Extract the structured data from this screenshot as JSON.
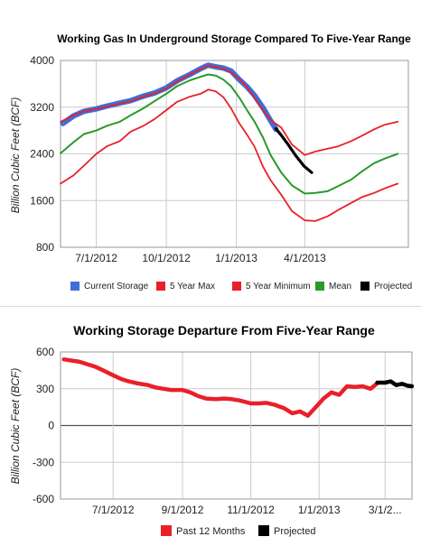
{
  "chart_data": [
    {
      "type": "line",
      "title": "Working Gas In Underground Storage Compared To Five-Year Range",
      "ylabel": "Billion Cubic Feet (BCF)",
      "xlabel": "",
      "ylim": [
        800,
        4000
      ],
      "yticks": [
        "4000",
        "3200",
        "2400",
        "1600",
        "800"
      ],
      "ytick_values": [
        4000,
        3200,
        2400,
        1600,
        800
      ],
      "xlim": [
        "2012-05-15",
        "2013-08-15"
      ],
      "xticks": [
        "7/1/2012",
        "10/1/2012",
        "1/1/2013",
        "4/1/2013"
      ],
      "xtick_dates": [
        "2012-07-01",
        "2012-10-01",
        "2013-01-01",
        "2013-04-01"
      ],
      "grid": true,
      "legend_position": "bottom",
      "series": [
        {
          "name": "Current Storage",
          "color": "#3d6fd8",
          "points": [
            [
              "2012-05-18",
              2920
            ],
            [
              "2012-06-01",
              3050
            ],
            [
              "2012-06-15",
              3130
            ],
            [
              "2012-07-01",
              3170
            ],
            [
              "2012-07-15",
              3220
            ],
            [
              "2012-08-01",
              3270
            ],
            [
              "2012-08-15",
              3310
            ],
            [
              "2012-09-01",
              3390
            ],
            [
              "2012-09-15",
              3440
            ],
            [
              "2012-10-01",
              3530
            ],
            [
              "2012-10-15",
              3650
            ],
            [
              "2012-11-01",
              3760
            ],
            [
              "2012-11-15",
              3860
            ],
            [
              "2012-11-25",
              3920
            ],
            [
              "2012-12-05",
              3890
            ],
            [
              "2012-12-15",
              3870
            ],
            [
              "2012-12-25",
              3820
            ],
            [
              "2013-01-05",
              3670
            ],
            [
              "2013-01-15",
              3550
            ],
            [
              "2013-01-25",
              3400
            ],
            [
              "2013-02-05",
              3190
            ],
            [
              "2013-02-15",
              2970
            ],
            [
              "2013-02-22",
              2820
            ]
          ]
        },
        {
          "name": "5 Year Max",
          "color": "#e8202a",
          "points": [
            [
              "2012-05-15",
              2950
            ],
            [
              "2012-06-01",
              3060
            ],
            [
              "2012-06-15",
              3130
            ],
            [
              "2012-07-01",
              3170
            ],
            [
              "2012-07-15",
              3210
            ],
            [
              "2012-08-01",
              3260
            ],
            [
              "2012-08-15",
              3300
            ],
            [
              "2012-09-01",
              3380
            ],
            [
              "2012-09-15",
              3430
            ],
            [
              "2012-10-01",
              3520
            ],
            [
              "2012-10-15",
              3640
            ],
            [
              "2012-11-01",
              3760
            ],
            [
              "2012-11-15",
              3850
            ],
            [
              "2012-11-25",
              3910
            ],
            [
              "2012-12-05",
              3890
            ],
            [
              "2012-12-15",
              3860
            ],
            [
              "2012-12-25",
              3800
            ],
            [
              "2013-01-05",
              3680
            ],
            [
              "2013-01-15",
              3540
            ],
            [
              "2013-01-25",
              3360
            ],
            [
              "2013-02-05",
              3150
            ],
            [
              "2013-02-15",
              2980
            ],
            [
              "2013-03-01",
              2850
            ],
            [
              "2013-03-15",
              2560
            ],
            [
              "2013-04-01",
              2380
            ],
            [
              "2013-04-15",
              2440
            ],
            [
              "2013-05-01",
              2490
            ],
            [
              "2013-05-15",
              2530
            ],
            [
              "2013-06-01",
              2620
            ],
            [
              "2013-06-15",
              2710
            ],
            [
              "2013-07-01",
              2820
            ],
            [
              "2013-07-15",
              2900
            ],
            [
              "2013-08-01",
              2950
            ]
          ]
        },
        {
          "name": "5 Year Minimum",
          "color": "#e8202a",
          "points": [
            [
              "2012-05-15",
              1890
            ],
            [
              "2012-06-01",
              2030
            ],
            [
              "2012-06-15",
              2200
            ],
            [
              "2012-07-01",
              2400
            ],
            [
              "2012-07-15",
              2530
            ],
            [
              "2012-08-01",
              2620
            ],
            [
              "2012-08-15",
              2780
            ],
            [
              "2012-09-01",
              2880
            ],
            [
              "2012-09-15",
              2990
            ],
            [
              "2012-10-01",
              3150
            ],
            [
              "2012-10-15",
              3290
            ],
            [
              "2012-11-01",
              3380
            ],
            [
              "2012-11-15",
              3430
            ],
            [
              "2012-11-25",
              3500
            ],
            [
              "2012-12-05",
              3470
            ],
            [
              "2012-12-15",
              3370
            ],
            [
              "2012-12-25",
              3180
            ],
            [
              "2013-01-05",
              2920
            ],
            [
              "2013-01-15",
              2730
            ],
            [
              "2013-01-25",
              2520
            ],
            [
              "2013-02-05",
              2180
            ],
            [
              "2013-02-15",
              1950
            ],
            [
              "2013-03-01",
              1700
            ],
            [
              "2013-03-15",
              1420
            ],
            [
              "2013-04-01",
              1260
            ],
            [
              "2013-04-15",
              1250
            ],
            [
              "2013-05-01",
              1330
            ],
            [
              "2013-05-15",
              1440
            ],
            [
              "2013-06-01",
              1560
            ],
            [
              "2013-06-15",
              1660
            ],
            [
              "2013-07-01",
              1730
            ],
            [
              "2013-07-15",
              1810
            ],
            [
              "2013-08-01",
              1890
            ]
          ]
        },
        {
          "name": "Mean",
          "color": "#2a9a2a",
          "points": [
            [
              "2012-05-15",
              2410
            ],
            [
              "2012-06-01",
              2600
            ],
            [
              "2012-06-15",
              2740
            ],
            [
              "2012-07-01",
              2800
            ],
            [
              "2012-07-15",
              2880
            ],
            [
              "2012-08-01",
              2950
            ],
            [
              "2012-08-15",
              3060
            ],
            [
              "2012-09-01",
              3180
            ],
            [
              "2012-09-15",
              3300
            ],
            [
              "2012-10-01",
              3430
            ],
            [
              "2012-10-15",
              3560
            ],
            [
              "2012-11-01",
              3660
            ],
            [
              "2012-11-15",
              3720
            ],
            [
              "2012-11-25",
              3760
            ],
            [
              "2012-12-05",
              3740
            ],
            [
              "2012-12-15",
              3670
            ],
            [
              "2012-12-25",
              3560
            ],
            [
              "2013-01-05",
              3360
            ],
            [
              "2013-01-15",
              3150
            ],
            [
              "2013-01-25",
              2950
            ],
            [
              "2013-02-05",
              2680
            ],
            [
              "2013-02-15",
              2380
            ],
            [
              "2013-03-01",
              2080
            ],
            [
              "2013-03-15",
              1860
            ],
            [
              "2013-04-01",
              1720
            ],
            [
              "2013-04-15",
              1730
            ],
            [
              "2013-05-01",
              1760
            ],
            [
              "2013-05-15",
              1850
            ],
            [
              "2013-06-01",
              1960
            ],
            [
              "2013-06-15",
              2100
            ],
            [
              "2013-07-01",
              2240
            ],
            [
              "2013-07-15",
              2320
            ],
            [
              "2013-08-01",
              2400
            ]
          ]
        },
        {
          "name": "Projected",
          "color": "#000000",
          "points": [
            [
              "2013-02-22",
              2830
            ],
            [
              "2013-03-01",
              2720
            ],
            [
              "2013-03-10",
              2560
            ],
            [
              "2013-03-20",
              2370
            ],
            [
              "2013-03-31",
              2190
            ],
            [
              "2013-04-10",
              2080
            ]
          ]
        }
      ]
    },
    {
      "type": "line",
      "title": "Working Storage Departure From Five-Year Range",
      "ylabel": "Billion Cubic Feet (BCF)",
      "xlabel": "",
      "ylim": [
        -600,
        600
      ],
      "yticks": [
        "600",
        "300",
        "0",
        "-300",
        "-600"
      ],
      "ytick_values": [
        600,
        300,
        0,
        -300,
        -600
      ],
      "xlim": [
        "2012-05-15",
        "2013-03-25"
      ],
      "xticks": [
        "7/1/2012",
        "9/1/2012",
        "11/1/2012",
        "1/1/2013",
        "3/1/2..."
      ],
      "xtick_dates": [
        "2012-07-01",
        "2012-09-01",
        "2012-11-01",
        "2013-01-01",
        "2013-03-01"
      ],
      "grid": true,
      "legend_position": "bottom",
      "series": [
        {
          "name": "Past 12 Months",
          "color": "#e8202a",
          "points": [
            [
              "2012-05-18",
              540
            ],
            [
              "2012-06-01",
              520
            ],
            [
              "2012-06-08",
              500
            ],
            [
              "2012-06-15",
              480
            ],
            [
              "2012-06-22",
              450
            ],
            [
              "2012-07-01",
              410
            ],
            [
              "2012-07-08",
              380
            ],
            [
              "2012-07-15",
              360
            ],
            [
              "2012-07-22",
              345
            ],
            [
              "2012-08-01",
              330
            ],
            [
              "2012-08-08",
              310
            ],
            [
              "2012-08-15",
              300
            ],
            [
              "2012-08-22",
              290
            ],
            [
              "2012-09-01",
              290
            ],
            [
              "2012-09-08",
              270
            ],
            [
              "2012-09-15",
              240
            ],
            [
              "2012-09-22",
              220
            ],
            [
              "2012-10-01",
              215
            ],
            [
              "2012-10-08",
              220
            ],
            [
              "2012-10-15",
              215
            ],
            [
              "2012-10-22",
              205
            ],
            [
              "2012-11-01",
              180
            ],
            [
              "2012-11-08",
              180
            ],
            [
              "2012-11-15",
              185
            ],
            [
              "2012-11-22",
              170
            ],
            [
              "2012-12-01",
              140
            ],
            [
              "2012-12-08",
              100
            ],
            [
              "2012-12-15",
              115
            ],
            [
              "2012-12-22",
              80
            ],
            [
              "2012-12-29",
              150
            ],
            [
              "2013-01-05",
              220
            ],
            [
              "2013-01-12",
              270
            ],
            [
              "2013-01-19",
              250
            ],
            [
              "2013-01-26",
              320
            ],
            [
              "2013-02-02",
              315
            ],
            [
              "2013-02-09",
              320
            ],
            [
              "2013-02-16",
              300
            ],
            [
              "2013-02-22",
              345
            ]
          ]
        },
        {
          "name": "Projected",
          "color": "#000000",
          "points": [
            [
              "2013-02-22",
              350
            ],
            [
              "2013-03-01",
              350
            ],
            [
              "2013-03-06",
              360
            ],
            [
              "2013-03-11",
              330
            ],
            [
              "2013-03-16",
              340
            ],
            [
              "2013-03-21",
              325
            ],
            [
              "2013-03-25",
              320
            ]
          ]
        }
      ]
    }
  ]
}
